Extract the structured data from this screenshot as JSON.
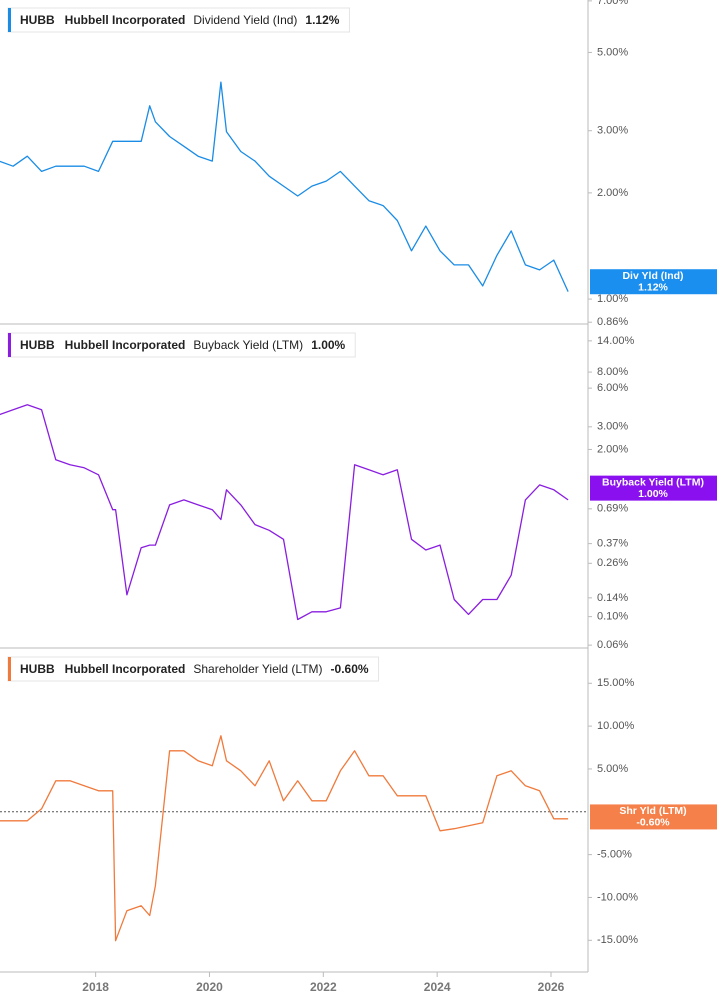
{
  "chart_data": [
    {
      "type": "line",
      "log_scale": true,
      "ticker": "HUBB",
      "company": "Hubbell Incorporated",
      "series": [
        {
          "name": "Dividend Yield (Ind)",
          "color": "#1a8ce6",
          "values": [
            2.46,
            2.38,
            2.54,
            2.3,
            2.38,
            2.38,
            2.38,
            2.3,
            2.8,
            2.8,
            2.8,
            2.8,
            3.53,
            3.18,
            2.89,
            2.71,
            2.54,
            2.46,
            4.12,
            2.98,
            2.62,
            2.46,
            2.23,
            2.09,
            1.96,
            2.09,
            2.16,
            2.3,
            2.09,
            1.9,
            1.84,
            1.67,
            1.37,
            1.61,
            1.37,
            1.25,
            1.25,
            1.09,
            1.33,
            1.56,
            1.25,
            1.21,
            1.29,
            1.05
          ]
        }
      ],
      "x": [
        2016.3,
        2016.55,
        2016.8,
        2017.05,
        2017.3,
        2017.55,
        2017.8,
        2018.05,
        2018.3,
        2018.35,
        2018.55,
        2018.8,
        2018.95,
        2019.05,
        2019.3,
        2019.55,
        2019.8,
        2020.05,
        2020.2,
        2020.3,
        2020.55,
        2020.8,
        2021.05,
        2021.3,
        2021.55,
        2021.8,
        2022.05,
        2022.3,
        2022.55,
        2022.8,
        2023.05,
        2023.3,
        2023.55,
        2023.8,
        2024.05,
        2024.3,
        2024.55,
        2024.8,
        2025.05,
        2025.3,
        2025.55,
        2025.8,
        2026.05,
        2026.3
      ],
      "xlim": [
        2016.32,
        2026.65
      ],
      "last_value": 1.12,
      "last_value_label": "1.12%",
      "badge_label": "Div Yld (Ind)",
      "badge_color": "#1a8ff0",
      "ylim": [
        0.85,
        7.04
      ],
      "yticks": [
        {
          "value": 7,
          "label": "7.00%"
        },
        {
          "value": 5,
          "label": "5.00%"
        },
        {
          "value": 3,
          "label": "3.00%"
        },
        {
          "value": 2,
          "label": "2.00%"
        },
        {
          "value": 1,
          "label": "1.00%"
        },
        {
          "value": 0.86,
          "label": "0.86%"
        }
      ]
    },
    {
      "type": "line",
      "log_scale": true,
      "ticker": "HUBB",
      "company": "Hubbell Incorporated",
      "series": [
        {
          "name": "Buyback Yield (LTM)",
          "color": "#8a1ee0",
          "values": [
            3.72,
            4.07,
            4.45,
            4.07,
            1.66,
            1.52,
            1.44,
            1.27,
            0.68,
            0.68,
            0.148,
            0.344,
            0.36,
            0.36,
            0.74,
            0.81,
            0.74,
            0.68,
            0.57,
            0.97,
            0.74,
            0.52,
            0.47,
            0.4,
            0.095,
            0.109,
            0.109,
            0.117,
            1.52,
            1.39,
            1.27,
            1.39,
            0.4,
            0.33,
            0.36,
            0.136,
            0.104,
            0.136,
            0.136,
            0.21,
            0.81,
            1.06,
            0.97,
            0.81
          ]
        }
      ],
      "x": [
        2016.3,
        2016.55,
        2016.8,
        2017.05,
        2017.3,
        2017.55,
        2017.8,
        2018.05,
        2018.3,
        2018.35,
        2018.55,
        2018.8,
        2018.95,
        2019.05,
        2019.3,
        2019.55,
        2019.8,
        2020.05,
        2020.2,
        2020.3,
        2020.55,
        2020.8,
        2021.05,
        2021.3,
        2021.55,
        2021.8,
        2022.05,
        2022.3,
        2022.55,
        2022.8,
        2023.05,
        2023.3,
        2023.55,
        2023.8,
        2024.05,
        2024.3,
        2024.55,
        2024.8,
        2025.05,
        2025.3,
        2025.55,
        2025.8,
        2026.05,
        2026.3
      ],
      "xlim": [
        2016.32,
        2026.65
      ],
      "last_value": 1.0,
      "last_value_label": "1.00%",
      "badge_label": "Buyback Yield (LTM)",
      "badge_color": "#8b10f0",
      "ylim": [
        0.057,
        18.6
      ],
      "yticks": [
        {
          "value": 14,
          "label": "14.00%"
        },
        {
          "value": 8,
          "label": "8.00%"
        },
        {
          "value": 6,
          "label": "6.00%"
        },
        {
          "value": 3,
          "label": "3.00%"
        },
        {
          "value": 2,
          "label": "2.00%"
        },
        {
          "value": 0.69,
          "label": "0.69%"
        },
        {
          "value": 0.37,
          "label": "0.37%"
        },
        {
          "value": 0.26,
          "label": "0.26%"
        },
        {
          "value": 0.14,
          "label": "0.14%"
        },
        {
          "value": 0.1,
          "label": "0.10%"
        },
        {
          "value": 0.06,
          "label": "0.06%"
        }
      ]
    },
    {
      "type": "line",
      "log_scale": false,
      "ticker": "HUBB",
      "company": "Hubbell Incorporated",
      "series": [
        {
          "name": "Shareholder Yield (LTM)",
          "color": "#f07a3c",
          "values": [
            -1.05,
            -1.05,
            -1.05,
            0.35,
            3.62,
            3.62,
            3.03,
            2.45,
            2.45,
            -15.05,
            -11.55,
            -10.97,
            -12.1,
            -8.63,
            7.12,
            7.12,
            5.95,
            5.37,
            8.87,
            5.95,
            4.78,
            3.03,
            5.95,
            1.28,
            3.62,
            1.28,
            1.28,
            4.78,
            7.12,
            4.2,
            4.2,
            1.87,
            1.87,
            1.87,
            -2.22,
            -1.98,
            -1.63,
            -1.28,
            4.2,
            4.78,
            3.03,
            2.45,
            -0.82,
            -0.82
          ]
        }
      ],
      "x": [
        2016.3,
        2016.55,
        2016.8,
        2017.05,
        2017.3,
        2017.55,
        2017.8,
        2018.05,
        2018.3,
        2018.35,
        2018.55,
        2018.8,
        2018.95,
        2019.05,
        2019.3,
        2019.55,
        2019.8,
        2020.05,
        2020.2,
        2020.3,
        2020.55,
        2020.8,
        2021.05,
        2021.3,
        2021.55,
        2021.8,
        2022.05,
        2022.3,
        2022.55,
        2022.8,
        2023.05,
        2023.3,
        2023.55,
        2023.8,
        2024.05,
        2024.3,
        2024.55,
        2024.8,
        2025.05,
        2025.3,
        2025.55,
        2025.8,
        2026.05,
        2026.3
      ],
      "xlim": [
        2016.32,
        2026.65
      ],
      "xticks": [
        2018,
        2020,
        2022,
        2024,
        2026
      ],
      "last_value": -0.6,
      "last_value_label": "-0.60%",
      "badge_label": "Shr Yld (LTM)",
      "badge_color": "#f5804a",
      "reference_line": 0,
      "ylim": [
        -18.7,
        19
      ],
      "yticks": [
        {
          "value": 15,
          "label": "15.00%"
        },
        {
          "value": 10,
          "label": "10.00%"
        },
        {
          "value": 5,
          "label": "5.00%"
        },
        {
          "value": -5,
          "label": "-5.00%"
        },
        {
          "value": -10,
          "label": "-10.00%"
        },
        {
          "value": -15,
          "label": "-15.00%"
        }
      ]
    }
  ]
}
